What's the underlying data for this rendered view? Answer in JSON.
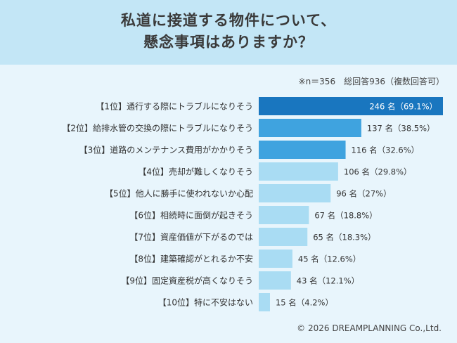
{
  "title": {
    "line1": "私道に接道する物件について、",
    "line2": "懸念事項はありますか？"
  },
  "note": "※n＝356　総回答936（複数回答可）",
  "copyright": "© 2026 DREAMPLANNING Co.,Ltd.",
  "colors": {
    "header_bg": "#c3e6f6",
    "page_bg": "#e8f5fc",
    "bar_top": "#1976bf",
    "bar_mid": "#3fa3df",
    "bar_low": "#a9dcf3"
  },
  "chart_data": {
    "type": "bar",
    "orientation": "horizontal",
    "categories": [
      "【1位】通行する際にトラブルになりそう",
      "【2位】給排水管の交換の際にトラブルになりそう",
      "【3位】道路のメンテナンス費用がかかりそう",
      "【4位】売却が難しくなりそう",
      "【5位】他人に勝手に使われないか心配",
      "【6位】相続時に面倒が起きそう",
      "【7位】資産価値が下がるのでは",
      "【8位】建築確認がとれるか不安",
      "【9位】固定資産税が高くなりそう",
      "【10位】特に不安はない"
    ],
    "values": [
      246,
      137,
      116,
      106,
      96,
      67,
      65,
      45,
      43,
      15
    ],
    "labels": [
      "246 名（69.1%）",
      "137 名（38.5%）",
      "116 名（32.6%）",
      "106 名（29.8%）",
      "96 名（27%）",
      "67 名（18.8%）",
      "65 名（18.3%）",
      "45 名（12.6%）",
      "43 名（12.1%）",
      "15 名（4.2%）"
    ],
    "xlim": [
      0,
      246
    ],
    "grid": false,
    "legend": "none"
  }
}
